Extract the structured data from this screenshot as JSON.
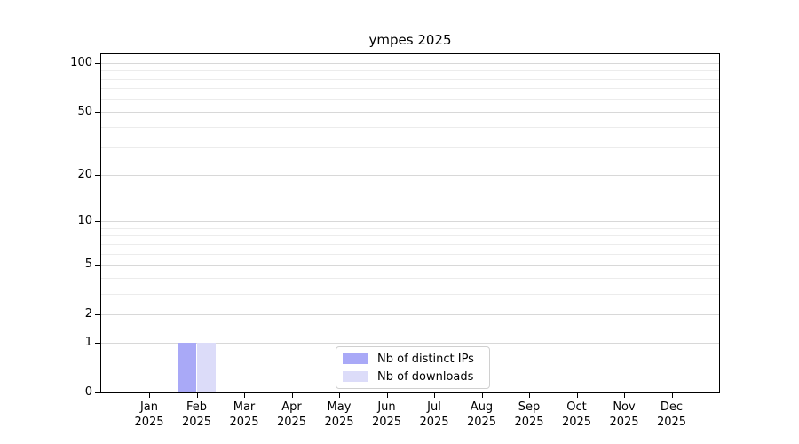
{
  "chart_data": {
    "type": "bar",
    "title": "ympes 2025",
    "categories": [
      {
        "month": "Jan",
        "year": "2025"
      },
      {
        "month": "Feb",
        "year": "2025"
      },
      {
        "month": "Mar",
        "year": "2025"
      },
      {
        "month": "Apr",
        "year": "2025"
      },
      {
        "month": "May",
        "year": "2025"
      },
      {
        "month": "Jun",
        "year": "2025"
      },
      {
        "month": "Jul",
        "year": "2025"
      },
      {
        "month": "Aug",
        "year": "2025"
      },
      {
        "month": "Sep",
        "year": "2025"
      },
      {
        "month": "Oct",
        "year": "2025"
      },
      {
        "month": "Nov",
        "year": "2025"
      },
      {
        "month": "Dec",
        "year": "2025"
      }
    ],
    "series": [
      {
        "name": "Nb of distinct IPs",
        "color": "#a9a9f7",
        "values": [
          0,
          1,
          0,
          0,
          0,
          0,
          0,
          0,
          0,
          0,
          0,
          0
        ]
      },
      {
        "name": "Nb of downloads",
        "color": "#dcdcf9",
        "values": [
          0,
          1,
          0,
          0,
          0,
          0,
          0,
          0,
          0,
          0,
          0,
          0
        ]
      }
    ],
    "y_axis": {
      "ticks": [
        0,
        1,
        2,
        5,
        10,
        20,
        50,
        100
      ],
      "minor_ticks": [
        3,
        4,
        6,
        7,
        8,
        9,
        30,
        40,
        60,
        70,
        80,
        90
      ],
      "lim": [
        0,
        100
      ],
      "scale": "log1p"
    },
    "grid": {
      "enabled": true,
      "orientation": "horizontal",
      "major_color": "#d8d8d8",
      "minor_color": "#ececec"
    },
    "legend": {
      "position": "lower center"
    },
    "colors": {
      "axis": "#000000",
      "text": "#000000",
      "background": "#ffffff"
    }
  }
}
